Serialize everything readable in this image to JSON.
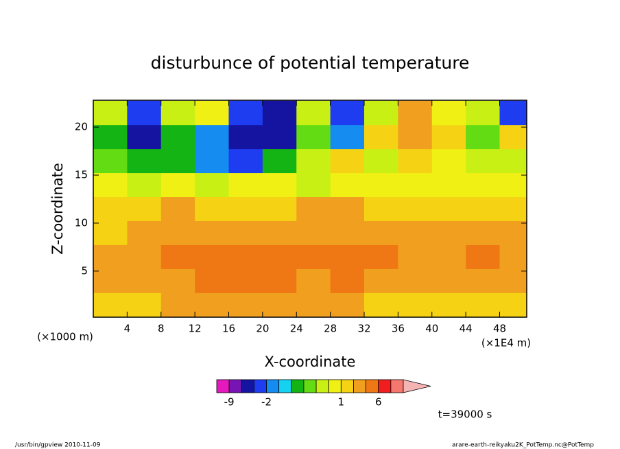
{
  "chart_data": {
    "type": "contour",
    "title": "disturbunce of potential temperature",
    "xlabel": "X-coordinate",
    "ylabel": "Z-coordinate",
    "xunit": "(×1E4 m)",
    "yunit": "(×1000 m)",
    "xlim": [
      0,
      51.2
    ],
    "ylim": [
      0.2,
      22.8
    ],
    "xticks": [
      4,
      8,
      12,
      16,
      20,
      24,
      28,
      32,
      36,
      40,
      44,
      48
    ],
    "yticks": [
      5,
      10,
      15,
      20
    ],
    "x": [
      2,
      6,
      10,
      14,
      18,
      22,
      26,
      30,
      34,
      38,
      42,
      46,
      50
    ],
    "y": [
      1.5,
      4,
      6.5,
      9,
      11.5,
      14,
      16.5,
      19,
      21.5
    ],
    "z": [
      [
        1,
        1.5,
        2,
        2,
        3,
        2,
        2,
        2,
        1,
        1.5,
        1,
        1,
        1
      ],
      [
        2,
        2,
        3,
        4,
        5,
        5,
        3,
        4,
        3,
        2,
        2,
        2,
        2
      ],
      [
        2,
        2,
        4,
        4,
        4,
        5,
        4,
        4,
        4,
        3,
        3,
        4,
        3
      ],
      [
        1,
        2,
        3,
        3,
        2,
        2,
        3,
        3,
        3,
        2,
        2,
        2,
        2
      ],
      [
        1,
        1,
        2,
        1,
        1,
        1,
        2,
        2,
        1,
        1,
        1,
        1,
        1
      ],
      [
        0.5,
        0,
        0.5,
        0.2,
        0.5,
        0.5,
        0,
        0.5,
        0.5,
        0.5,
        0.5,
        0.5,
        0.5
      ],
      [
        -0.5,
        -1,
        -1,
        -2,
        -3,
        -1,
        0,
        1,
        0,
        1,
        0.5,
        0,
        0
      ],
      [
        -1,
        -4,
        -1,
        -2,
        -4,
        -4,
        -0.5,
        -2,
        1,
        2,
        1,
        -0.5,
        1
      ],
      [
        0,
        -3,
        0,
        0.5,
        -3,
        -4,
        0,
        -3,
        0,
        2,
        0.5,
        0,
        -3
      ]
    ],
    "colorbar": {
      "levels": [
        -12,
        -9,
        -6,
        -3,
        -2,
        -1.5,
        -1,
        -0.5,
        0,
        0.5,
        1,
        2,
        4,
        6,
        9,
        12
      ],
      "colors": [
        "#e619be",
        "#7814b4",
        "#1414a0",
        "#1e3cf0",
        "#148cf0",
        "#14d2f0",
        "#14b414",
        "#64dc14",
        "#c8f014",
        "#f0f014",
        "#f5d214",
        "#f0a01e",
        "#f07814",
        "#f01e1e",
        "#f5786e"
      ],
      "extend_color": "#f5b4b4",
      "ticks": [
        -9,
        -2,
        1,
        6
      ]
    },
    "annotation": "t=39000 s",
    "footer_left": "/usr/bin/gpview   2010-11-09",
    "footer_right": "arare-earth-reikyaku2K_PotTemp.nc@PotTemp"
  }
}
